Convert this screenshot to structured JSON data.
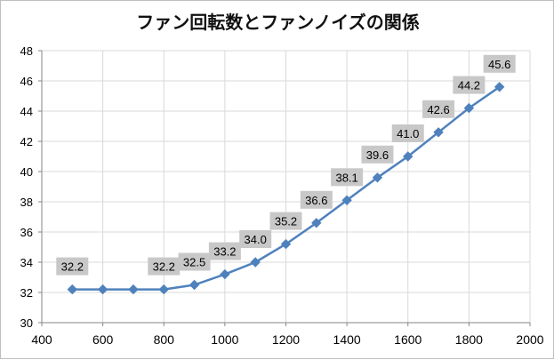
{
  "chart_data": {
    "type": "line",
    "title": "ファン回転数とファンノイズの関係",
    "xlabel": "",
    "ylabel": "",
    "xlim": [
      400,
      2000
    ],
    "ylim": [
      30,
      48
    ],
    "x_ticks": [
      "400",
      "600",
      "800",
      "1000",
      "1200",
      "1400",
      "1600",
      "1800",
      "2000"
    ],
    "y_ticks": [
      "30",
      "32",
      "34",
      "36",
      "38",
      "40",
      "42",
      "44",
      "46",
      "48"
    ],
    "grid": true,
    "legend": "none",
    "series": [
      {
        "color": "#4f81bd",
        "marker": "diamond",
        "x": [
          500,
          600,
          700,
          800,
          900,
          1000,
          1100,
          1200,
          1300,
          1400,
          1500,
          1600,
          1700,
          1800,
          1900
        ],
        "y": [
          32.2,
          32.2,
          32.2,
          32.2,
          32.5,
          33.2,
          34.0,
          35.2,
          36.6,
          38.1,
          39.6,
          41.0,
          42.6,
          44.2,
          45.6
        ]
      }
    ],
    "data_labels": [
      {
        "x": 500,
        "y": 32.2,
        "text": "32.2"
      },
      {
        "x": 800,
        "y": 32.2,
        "text": "32.2"
      },
      {
        "x": 900,
        "y": 32.5,
        "text": "32.5"
      },
      {
        "x": 1000,
        "y": 33.2,
        "text": "33.2"
      },
      {
        "x": 1100,
        "y": 34.0,
        "text": "34.0"
      },
      {
        "x": 1200,
        "y": 35.2,
        "text": "35.2"
      },
      {
        "x": 1300,
        "y": 36.6,
        "text": "36.6"
      },
      {
        "x": 1400,
        "y": 38.1,
        "text": "38.1"
      },
      {
        "x": 1500,
        "y": 39.6,
        "text": "39.6"
      },
      {
        "x": 1600,
        "y": 41.0,
        "text": "41.0"
      },
      {
        "x": 1700,
        "y": 42.6,
        "text": "42.6"
      },
      {
        "x": 1800,
        "y": 44.2,
        "text": "44.2"
      },
      {
        "x": 1900,
        "y": 45.6,
        "text": "45.6"
      }
    ],
    "label_bg_color": "#c8c8c8",
    "grid_color": "#d9d9d9",
    "axis_color": "#868686"
  }
}
